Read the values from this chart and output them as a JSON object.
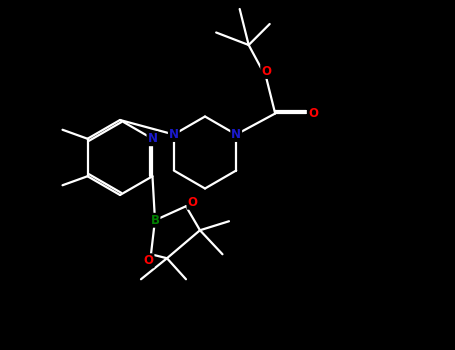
{
  "bg_color": "#000000",
  "atom_colors": {
    "C": "#ffffff",
    "N": "#1a1acd",
    "O": "#ff0000",
    "B": "#008000"
  },
  "bond_color": "#ffffff",
  "bond_lw": 1.6,
  "figsize": [
    4.55,
    3.5
  ],
  "dpi": 100,
  "xlim": [
    0,
    9.0
  ],
  "ylim": [
    0,
    7.0
  ]
}
